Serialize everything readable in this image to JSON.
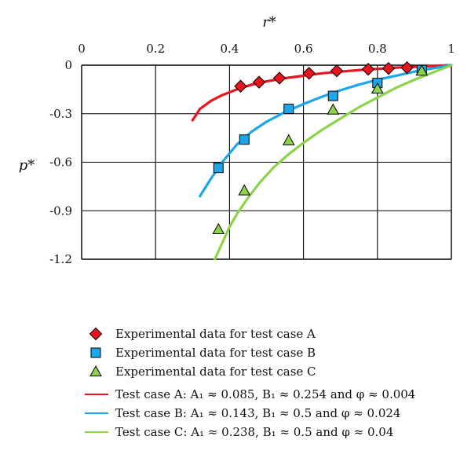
{
  "chart_data": {
    "type": "scatter",
    "xlabel": "r*",
    "ylabel": "p*",
    "xlim": [
      0,
      1
    ],
    "ylim": [
      -1.2,
      0
    ],
    "x_axis_position": "top",
    "grid": true,
    "x_ticks": [
      "0",
      "0.2",
      "0.4",
      "0.6",
      "0.8",
      "1"
    ],
    "y_ticks": [
      "0",
      "-0.3",
      "-0.6",
      "-0.9",
      "-1.2"
    ],
    "x_tick_values": [
      0,
      0.2,
      0.4,
      0.6,
      0.8,
      1
    ],
    "y_tick_values": [
      0,
      -0.3,
      -0.6,
      -0.9,
      -1.2
    ],
    "legend_position": "bottom",
    "colors": {
      "A": "#e8141e",
      "B": "#1aa6e8",
      "C": "#8cd24a"
    },
    "markers": [
      {
        "name": "Experimental data for test case A",
        "marker": "diamond",
        "color": "#e8141e",
        "points": [
          [
            0.43,
            -0.13
          ],
          [
            0.48,
            -0.105
          ],
          [
            0.535,
            -0.08
          ],
          [
            0.615,
            -0.05
          ],
          [
            0.69,
            -0.035
          ],
          [
            0.775,
            -0.025
          ],
          [
            0.83,
            -0.02
          ],
          [
            0.88,
            -0.015
          ]
        ]
      },
      {
        "name": "Experimental data for test case B",
        "marker": "square",
        "color": "#1aa6e8",
        "points": [
          [
            0.37,
            -0.635
          ],
          [
            0.44,
            -0.46
          ],
          [
            0.56,
            -0.27
          ],
          [
            0.68,
            -0.19
          ],
          [
            0.8,
            -0.11
          ],
          [
            0.92,
            -0.03
          ]
        ]
      },
      {
        "name": "Experimental data for test case C",
        "marker": "triangle",
        "color": "#8cd24a",
        "points": [
          [
            0.37,
            -1.015
          ],
          [
            0.44,
            -0.775
          ],
          [
            0.56,
            -0.465
          ],
          [
            0.68,
            -0.275
          ],
          [
            0.8,
            -0.145
          ],
          [
            0.92,
            -0.035
          ]
        ]
      }
    ],
    "series": [
      {
        "name": "Test case A: A₁ ≈ 0.085, B₁ ≈ 0.254 and φ ≈ 0.004",
        "color": "#e8141e",
        "x": [
          0.3,
          0.32,
          0.35,
          0.38,
          0.42,
          0.46,
          0.5,
          0.55,
          0.6,
          0.65,
          0.7,
          0.75,
          0.8,
          0.85,
          0.9,
          0.95,
          1.0
        ],
        "y": [
          -0.34,
          -0.27,
          -0.22,
          -0.185,
          -0.15,
          -0.12,
          -0.1,
          -0.08,
          -0.065,
          -0.05,
          -0.04,
          -0.03,
          -0.023,
          -0.015,
          -0.01,
          -0.005,
          0
        ]
      },
      {
        "name": "Test case B: A₁ ≈ 0.143, B₁ ≈ 0.5 and φ ≈ 0.024",
        "color": "#1aa6e8",
        "x": [
          0.32,
          0.35,
          0.38,
          0.42,
          0.46,
          0.5,
          0.55,
          0.6,
          0.65,
          0.7,
          0.75,
          0.8,
          0.85,
          0.9,
          0.95,
          1.0
        ],
        "y": [
          -0.81,
          -0.7,
          -0.6,
          -0.49,
          -0.41,
          -0.35,
          -0.29,
          -0.24,
          -0.195,
          -0.155,
          -0.12,
          -0.09,
          -0.065,
          -0.04,
          -0.02,
          0
        ]
      },
      {
        "name": "Test case C: A₁ ≈ 0.238, B₁ ≈ 0.5 and φ ≈ 0.04",
        "color": "#8cd24a",
        "x": [
          0.36,
          0.38,
          0.4,
          0.42,
          0.45,
          0.48,
          0.52,
          0.56,
          0.6,
          0.65,
          0.7,
          0.75,
          0.8,
          0.85,
          0.9,
          0.95,
          1.0
        ],
        "y": [
          -1.2,
          -1.1,
          -1.0,
          -0.92,
          -0.82,
          -0.73,
          -0.63,
          -0.55,
          -0.48,
          -0.4,
          -0.33,
          -0.26,
          -0.2,
          -0.14,
          -0.09,
          -0.045,
          0
        ]
      }
    ]
  }
}
